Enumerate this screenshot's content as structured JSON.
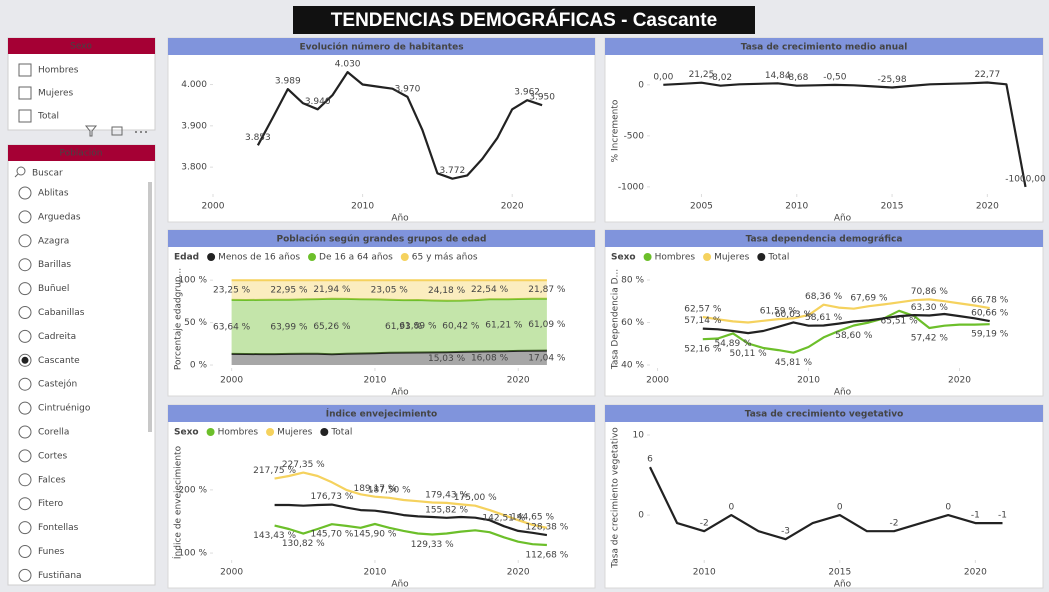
{
  "title": "TENDENCIAS DEMOGRÁFICAS - Cascante",
  "slicers": {
    "sexo": {
      "title": "Sexo",
      "options": [
        "Hombres",
        "Mujeres",
        "Total"
      ]
    },
    "poblacion": {
      "title": "Población",
      "search_placeholder": "Buscar",
      "selected": 7,
      "options": [
        "Ablitas",
        "Arguedas",
        "Azagra",
        "Barillas",
        "Buñuel",
        "Cabanillas",
        "Cadreita",
        "Cascante",
        "Castejón",
        "Cintruénigo",
        "Corella",
        "Cortes",
        "Falces",
        "Fitero",
        "Fontellas",
        "Funes",
        "Fustiñana"
      ]
    }
  },
  "chart_data": [
    {
      "type": "line",
      "title": "Evolución número de habitantes",
      "x_label": "Año",
      "color": "#222222",
      "x": [
        2003,
        2004,
        2005,
        2006,
        2007,
        2008,
        2009,
        2010,
        2011,
        2012,
        2013,
        2014,
        2015,
        2016,
        2017,
        2018,
        2019,
        2020,
        2021,
        2022
      ],
      "values": [
        3853,
        3920,
        3989,
        3955,
        3940,
        3975,
        4030,
        4000,
        3995,
        3990,
        3970,
        3890,
        3785,
        3772,
        3780,
        3820,
        3870,
        3940,
        3962,
        3950
      ],
      "value_labels": [
        "3.853",
        null,
        "3.989",
        null,
        "3.940",
        null,
        "4.030",
        null,
        null,
        null,
        "3.970",
        null,
        null,
        "3.772",
        null,
        null,
        null,
        null,
        "3.962",
        "3.950"
      ],
      "xlim": [
        2000,
        2025
      ],
      "xticks": [
        2000,
        2010,
        2020
      ],
      "ylim": [
        3735,
        4040
      ],
      "yticks": [
        {
          "value": 3800,
          "label": "3.800"
        },
        {
          "value": 3900,
          "label": "3.900"
        },
        {
          "value": 4000,
          "label": "4.000"
        }
      ]
    },
    {
      "type": "line",
      "title": "Tasa de crecimiento medio anual",
      "x_label": "Año",
      "y_label": "% Incremento",
      "color": "#222222",
      "x": [
        2003,
        2004,
        2005,
        2006,
        2007,
        2008,
        2009,
        2010,
        2011,
        2012,
        2013,
        2014,
        2015,
        2016,
        2017,
        2018,
        2019,
        2020,
        2021,
        2022
      ],
      "values": [
        0,
        10,
        21.25,
        -8.02,
        5,
        10,
        14.84,
        -8.68,
        -5,
        -0.5,
        -5,
        -15,
        -25.98,
        -10,
        5,
        10,
        15,
        22.77,
        5,
        -1000
      ],
      "value_labels": [
        "0,00",
        null,
        "21,25",
        "-8,02",
        null,
        null,
        "14,84",
        "-8,68",
        null,
        "-0,50",
        null,
        null,
        "-25,98",
        null,
        null,
        null,
        null,
        "22,77",
        null,
        "-1000,00"
      ],
      "xlim": [
        2002.3,
        2022.5
      ],
      "xticks": [
        2005,
        2010,
        2015,
        2020
      ],
      "ylim": [
        -1070,
        165
      ],
      "yticks": [
        0,
        -500,
        -1000
      ]
    },
    {
      "type": "area",
      "stacked": true,
      "title": "Población según grandes grupos de edad",
      "x_label": "Año",
      "y_label": "Porcentaje edadgrup...",
      "legend_title": "Edad",
      "x": [
        2000,
        2001,
        2002,
        2003,
        2004,
        2005,
        2006,
        2007,
        2008,
        2009,
        2010,
        2011,
        2012,
        2013,
        2014,
        2015,
        2016,
        2017,
        2018,
        2019,
        2020,
        2021,
        2022
      ],
      "series": [
        {
          "name": "Menos de 16 años",
          "color": "#222222",
          "values": [
            13.11,
            13.0,
            12.9,
            12.9,
            13.06,
            13.2,
            13.3,
            12.8,
            13.2,
            13.6,
            14.0,
            14.4,
            14.6,
            14.8,
            14.9,
            15.03,
            15.5,
            15.8,
            16.08,
            16.3,
            16.6,
            16.92,
            17.04
          ],
          "value_labels": [
            null,
            null,
            null,
            null,
            null,
            null,
            null,
            null,
            null,
            null,
            null,
            null,
            null,
            null,
            null,
            "15,03 %",
            null,
            null,
            "16,08 %",
            null,
            null,
            null,
            "17,04 %"
          ]
        },
        {
          "name": "De 16 a 64 años",
          "color": "#6cbf2a",
          "values": [
            63.64,
            63.7,
            63.9,
            64.0,
            63.99,
            64.2,
            64.4,
            65.26,
            64.7,
            64.0,
            63.3,
            62.55,
            61.93,
            61.89,
            61.2,
            60.79,
            60.42,
            60.7,
            61.38,
            61.21,
            61.2,
            61.08,
            61.09
          ],
          "value_labels": [
            "63,64 %",
            null,
            null,
            null,
            "63,99 %",
            null,
            null,
            "65,26 %",
            null,
            null,
            null,
            null,
            "61,93 %",
            "61,89 %",
            null,
            null,
            "60,42 %",
            null,
            null,
            "61,21 %",
            null,
            null,
            "61,09 %"
          ]
        },
        {
          "name": "65 y más años",
          "color": "#f5d25e",
          "values": [
            23.25,
            23.3,
            23.2,
            23.1,
            22.95,
            22.6,
            22.3,
            21.94,
            22.1,
            22.4,
            22.7,
            23.05,
            23.47,
            23.31,
            23.9,
            24.18,
            24.08,
            23.5,
            22.54,
            22.49,
            22.2,
            22.0,
            21.87
          ],
          "value_labels": [
            "23,25 %",
            null,
            null,
            null,
            "22,95 %",
            null,
            null,
            "21,94 %",
            null,
            null,
            null,
            "23,05 %",
            null,
            null,
            null,
            "24,18 %",
            null,
            null,
            "22,54 %",
            null,
            null,
            null,
            "21,87 %"
          ]
        }
      ],
      "xlim": [
        1998.7,
        2024.8
      ],
      "xticks": [
        2000,
        2010,
        2020
      ],
      "ylim": [
        -3.5,
        112
      ],
      "yticks": [
        {
          "value": 0,
          "label": "0 %"
        },
        {
          "value": 50,
          "label": "50 %"
        },
        {
          "value": 100,
          "label": "100 %"
        }
      ]
    },
    {
      "type": "line",
      "title": "Tasa dependencia demográfica",
      "x_label": "Año",
      "y_label": "Tasa Dependencia D...",
      "legend_title": "Sexo",
      "x": [
        2003,
        2004,
        2005,
        2006,
        2007,
        2008,
        2009,
        2010,
        2011,
        2012,
        2013,
        2014,
        2015,
        2016,
        2017,
        2018,
        2019,
        2020,
        2021,
        2022
      ],
      "series": [
        {
          "name": "Hombres",
          "color": "#6cbf2a",
          "values": [
            52.16,
            52.5,
            54.89,
            50.11,
            48.0,
            47.0,
            45.81,
            48.5,
            53.0,
            56.0,
            58.6,
            60.0,
            62.0,
            65.51,
            63.0,
            57.42,
            58.5,
            59.0,
            59.0,
            59.19
          ],
          "value_labels": [
            "52,16 %",
            null,
            "54,89 %",
            "50,11 %",
            null,
            null,
            "45,81 %",
            null,
            null,
            null,
            "58,60 %",
            null,
            null,
            "65,51 %",
            null,
            "57,42 %",
            null,
            null,
            null,
            "59,19 %"
          ]
        },
        {
          "name": "Mujeres",
          "color": "#f5d25e",
          "values": [
            62.57,
            61.5,
            60.5,
            60.0,
            60.8,
            61.59,
            62.0,
            63.5,
            68.36,
            67.0,
            66.5,
            67.69,
            68.5,
            69.5,
            70.5,
            70.86,
            70.0,
            69.0,
            68.0,
            66.78
          ],
          "value_labels": [
            "62,57 %",
            null,
            null,
            null,
            null,
            "61,59 %",
            null,
            null,
            "68,36 %",
            null,
            null,
            "67,69 %",
            null,
            null,
            null,
            "70,86 %",
            null,
            null,
            null,
            "66,78 %"
          ]
        },
        {
          "name": "Total",
          "color": "#222222",
          "values": [
            57.14,
            56.8,
            56.0,
            55.0,
            56.0,
            58.0,
            60.03,
            58.5,
            58.61,
            59.5,
            60.5,
            61.0,
            62.0,
            63.0,
            63.5,
            63.3,
            64.0,
            63.0,
            62.0,
            60.66
          ],
          "value_labels": [
            "57,14 %",
            null,
            null,
            null,
            null,
            null,
            "60,03 %",
            null,
            "58,61 %",
            null,
            null,
            null,
            null,
            null,
            null,
            "63,30 %",
            null,
            null,
            null,
            "60,66 %"
          ]
        }
      ],
      "xlim": [
        1999.5,
        2025
      ],
      "xticks": [
        2000,
        2010,
        2020
      ],
      "ylim": [
        38.6,
        84.7
      ],
      "yticks": [
        {
          "value": 40,
          "label": "40 %"
        },
        {
          "value": 60,
          "label": "60 %"
        },
        {
          "value": 80,
          "label": "80 %"
        }
      ]
    },
    {
      "type": "line",
      "title": "Índice envejecimiento",
      "x_label": "Año",
      "y_label": "Índice de envejecimiento",
      "legend_title": "Sexo",
      "x": [
        2003,
        2004,
        2005,
        2006,
        2007,
        2008,
        2009,
        2010,
        2011,
        2012,
        2013,
        2014,
        2015,
        2016,
        2017,
        2018,
        2019,
        2020,
        2021,
        2022
      ],
      "series": [
        {
          "name": "Hombres",
          "color": "#6cbf2a",
          "values": [
            143.43,
            138,
            130.82,
            138,
            145.7,
            143,
            140,
            145.9,
            140,
            135,
            131,
            129.33,
            131,
            134,
            136,
            133,
            125,
            118,
            114,
            112.68
          ],
          "value_labels": [
            "143,43 %",
            null,
            "130,82 %",
            null,
            "145,70 %",
            null,
            null,
            "145,90 %",
            null,
            null,
            null,
            "129,33 %",
            null,
            null,
            null,
            null,
            null,
            null,
            null,
            "112,68 %"
          ]
        },
        {
          "name": "Mujeres",
          "color": "#f5d25e",
          "values": [
            217.75,
            222,
            227.35,
            222,
            212,
            200,
            193,
            189.17,
            187.5,
            184,
            182,
            180,
            179.43,
            177,
            175.0,
            168,
            160,
            152,
            144.65,
            140
          ],
          "value_labels": [
            "217,75 %",
            null,
            "227,35 %",
            null,
            null,
            null,
            null,
            "189,17 %",
            "187,50 %",
            null,
            null,
            null,
            "179,43 %",
            null,
            "175,00 %",
            null,
            null,
            null,
            "144,65 %",
            null
          ]
        },
        {
          "name": "Total",
          "color": "#222222",
          "values": [
            176,
            176,
            175,
            176,
            176.73,
            172,
            168,
            167,
            164,
            160,
            158,
            157,
            155.82,
            157,
            156,
            152,
            142.51,
            135,
            132,
            128.38
          ],
          "value_labels": [
            null,
            null,
            null,
            null,
            "176,73 %",
            null,
            null,
            null,
            null,
            null,
            null,
            null,
            "155,82 %",
            null,
            null,
            null,
            "142,51 %",
            null,
            null,
            "128,38 %"
          ]
        }
      ],
      "xlim": [
        1998.7,
        2024.8
      ],
      "xticks": [
        2000,
        2010,
        2020
      ],
      "ylim": [
        89,
        271
      ],
      "yticks": [
        {
          "value": 100,
          "label": "100 %"
        },
        {
          "value": 200,
          "label": "200 %"
        }
      ]
    },
    {
      "type": "line",
      "title": "Tasa de crecimiento vegetativo",
      "x_label": "Año",
      "y_label": "Tasa de crecimiento vegetativo",
      "color": "#222222",
      "x": [
        2008,
        2009,
        2010,
        2011,
        2012,
        2013,
        2014,
        2015,
        2016,
        2017,
        2018,
        2019,
        2020,
        2021
      ],
      "values": [
        6,
        -1,
        -2,
        0,
        -2,
        -3,
        -1,
        0,
        -2,
        -2,
        -1,
        0,
        -1,
        -1
      ],
      "value_labels": [
        "6",
        null,
        "-2",
        "0",
        null,
        "-3",
        null,
        "0",
        null,
        "-2",
        null,
        "0",
        "-1",
        "-1"
      ],
      "xlim": [
        2008,
        2022.2
      ],
      "xticks": [
        2010,
        2015,
        2020
      ],
      "ylim": [
        -5.6,
        10
      ],
      "yticks": [
        10,
        0
      ]
    }
  ]
}
